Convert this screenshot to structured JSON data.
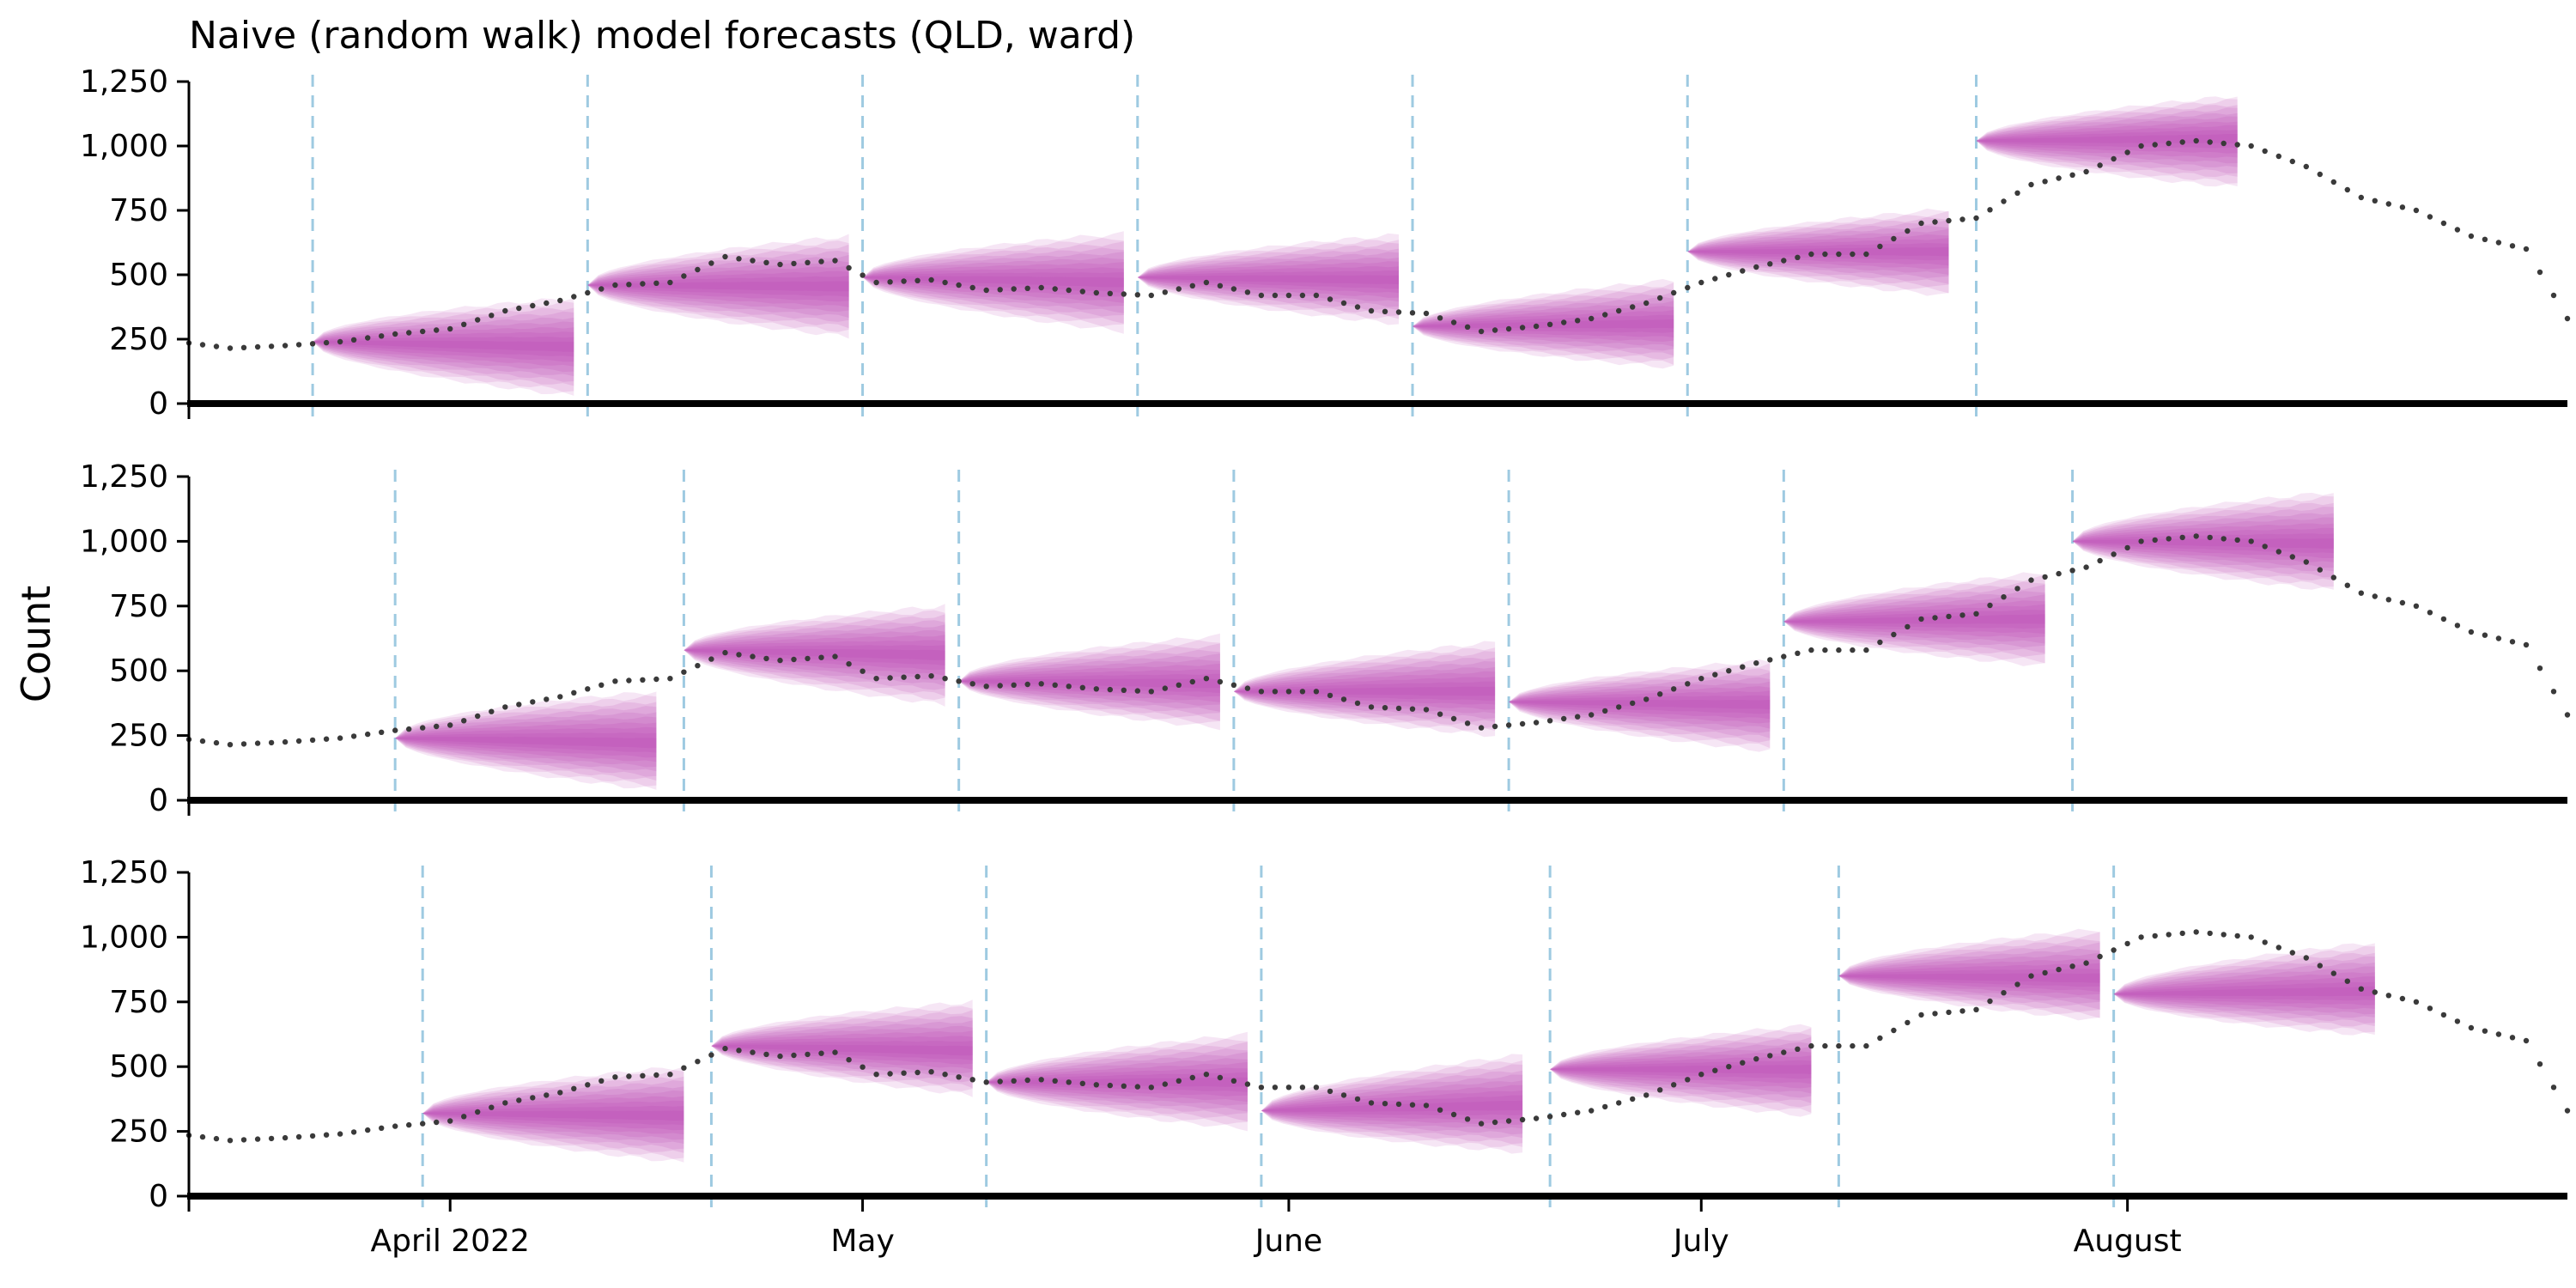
{
  "chart_data": {
    "type": "line",
    "title": "Naive (random walk) model forecasts (QLD, ward)",
    "ylabel": "Count",
    "ylim": [
      0,
      1250
    ],
    "yticks": [
      0,
      250,
      500,
      750,
      1000,
      1250
    ],
    "ytick_labels": [
      "0",
      "250",
      "500",
      "750",
      "1,000",
      "1,250"
    ],
    "xlim": [
      "2022-03-13",
      "2022-09-02"
    ],
    "xtick_dates": [
      "2022-04-01",
      "2022-05-01",
      "2022-06-01",
      "2022-07-01",
      "2022-08-01"
    ],
    "xtick_labels": [
      "April 2022",
      "May",
      "June",
      "July",
      "August"
    ],
    "colors": {
      "fan": "#b83fb0",
      "observed": "#3a3a3a",
      "forecast_origin": "#9ecae1",
      "axis": "#000000"
    },
    "observed": {
      "dates": [
        "2022-03-13",
        "2022-03-16",
        "2022-03-20",
        "2022-03-24",
        "2022-03-28",
        "2022-04-01",
        "2022-04-05",
        "2022-04-09",
        "2022-04-13",
        "2022-04-17",
        "2022-04-21",
        "2022-04-25",
        "2022-04-29",
        "2022-05-02",
        "2022-05-06",
        "2022-05-10",
        "2022-05-14",
        "2022-05-18",
        "2022-05-22",
        "2022-05-26",
        "2022-05-30",
        "2022-06-03",
        "2022-06-07",
        "2022-06-11",
        "2022-06-15",
        "2022-06-19",
        "2022-06-23",
        "2022-06-27",
        "2022-07-01",
        "2022-07-05",
        "2022-07-09",
        "2022-07-13",
        "2022-07-17",
        "2022-07-21",
        "2022-07-25",
        "2022-07-29",
        "2022-08-02",
        "2022-08-06",
        "2022-08-10",
        "2022-08-14",
        "2022-08-18",
        "2022-08-22",
        "2022-08-26",
        "2022-08-30",
        "2022-09-02"
      ],
      "values": [
        235,
        215,
        225,
        240,
        270,
        290,
        360,
        400,
        460,
        470,
        570,
        540,
        555,
        470,
        480,
        440,
        450,
        430,
        420,
        470,
        420,
        420,
        360,
        350,
        280,
        300,
        330,
        390,
        470,
        530,
        580,
        580,
        700,
        720,
        850,
        900,
        1000,
        1020,
        1000,
        920,
        800,
        750,
        650,
        600,
        330
      ]
    },
    "panels": [
      {
        "fans": [
          {
            "start": "2022-03-22",
            "end": "2022-04-10",
            "start_value": 240,
            "end_median": 220,
            "end_lower": 30,
            "end_upper": 410
          },
          {
            "start": "2022-04-11",
            "end": "2022-04-30",
            "start_value": 460,
            "end_median": 455,
            "end_lower": 260,
            "end_upper": 650
          },
          {
            "start": "2022-05-01",
            "end": "2022-05-20",
            "start_value": 490,
            "end_median": 470,
            "end_lower": 280,
            "end_upper": 660
          },
          {
            "start": "2022-05-21",
            "end": "2022-06-09",
            "start_value": 490,
            "end_median": 480,
            "end_lower": 310,
            "end_upper": 655
          },
          {
            "start": "2022-06-10",
            "end": "2022-06-29",
            "start_value": 300,
            "end_median": 310,
            "end_lower": 140,
            "end_upper": 480
          },
          {
            "start": "2022-06-30",
            "end": "2022-07-19",
            "start_value": 590,
            "end_median": 590,
            "end_lower": 420,
            "end_upper": 755
          },
          {
            "start": "2022-07-21",
            "end": "2022-08-09",
            "start_value": 1020,
            "end_median": 1030,
            "end_lower": 840,
            "end_upper": 1195
          }
        ]
      },
      {
        "fans": [
          {
            "start": "2022-03-28",
            "end": "2022-04-16",
            "start_value": 240,
            "end_median": 220,
            "end_lower": 40,
            "end_upper": 420
          },
          {
            "start": "2022-04-18",
            "end": "2022-05-07",
            "start_value": 580,
            "end_median": 560,
            "end_lower": 370,
            "end_upper": 750
          },
          {
            "start": "2022-05-08",
            "end": "2022-05-27",
            "start_value": 460,
            "end_median": 450,
            "end_lower": 280,
            "end_upper": 635
          },
          {
            "start": "2022-05-28",
            "end": "2022-06-16",
            "start_value": 420,
            "end_median": 420,
            "end_lower": 250,
            "end_upper": 610
          },
          {
            "start": "2022-06-17",
            "end": "2022-07-06",
            "start_value": 380,
            "end_median": 370,
            "end_lower": 190,
            "end_upper": 540
          },
          {
            "start": "2022-07-07",
            "end": "2022-07-26",
            "start_value": 690,
            "end_median": 700,
            "end_lower": 520,
            "end_upper": 880
          },
          {
            "start": "2022-07-28",
            "end": "2022-08-16",
            "start_value": 1000,
            "end_median": 990,
            "end_lower": 810,
            "end_upper": 1190
          }
        ]
      },
      {
        "fans": [
          {
            "start": "2022-03-30",
            "end": "2022-04-18",
            "start_value": 320,
            "end_median": 310,
            "end_lower": 130,
            "end_upper": 500
          },
          {
            "start": "2022-04-20",
            "end": "2022-05-09",
            "start_value": 580,
            "end_median": 560,
            "end_lower": 390,
            "end_upper": 750
          },
          {
            "start": "2022-05-10",
            "end": "2022-05-29",
            "start_value": 440,
            "end_median": 440,
            "end_lower": 260,
            "end_upper": 625
          },
          {
            "start": "2022-05-30",
            "end": "2022-06-18",
            "start_value": 330,
            "end_median": 350,
            "end_lower": 170,
            "end_upper": 545
          },
          {
            "start": "2022-06-20",
            "end": "2022-07-09",
            "start_value": 490,
            "end_median": 490,
            "end_lower": 310,
            "end_upper": 660
          },
          {
            "start": "2022-07-11",
            "end": "2022-07-30",
            "start_value": 850,
            "end_median": 840,
            "end_lower": 680,
            "end_upper": 1030
          },
          {
            "start": "2022-07-31",
            "end": "2022-08-19",
            "start_value": 780,
            "end_median": 790,
            "end_lower": 620,
            "end_upper": 980
          }
        ]
      }
    ]
  }
}
